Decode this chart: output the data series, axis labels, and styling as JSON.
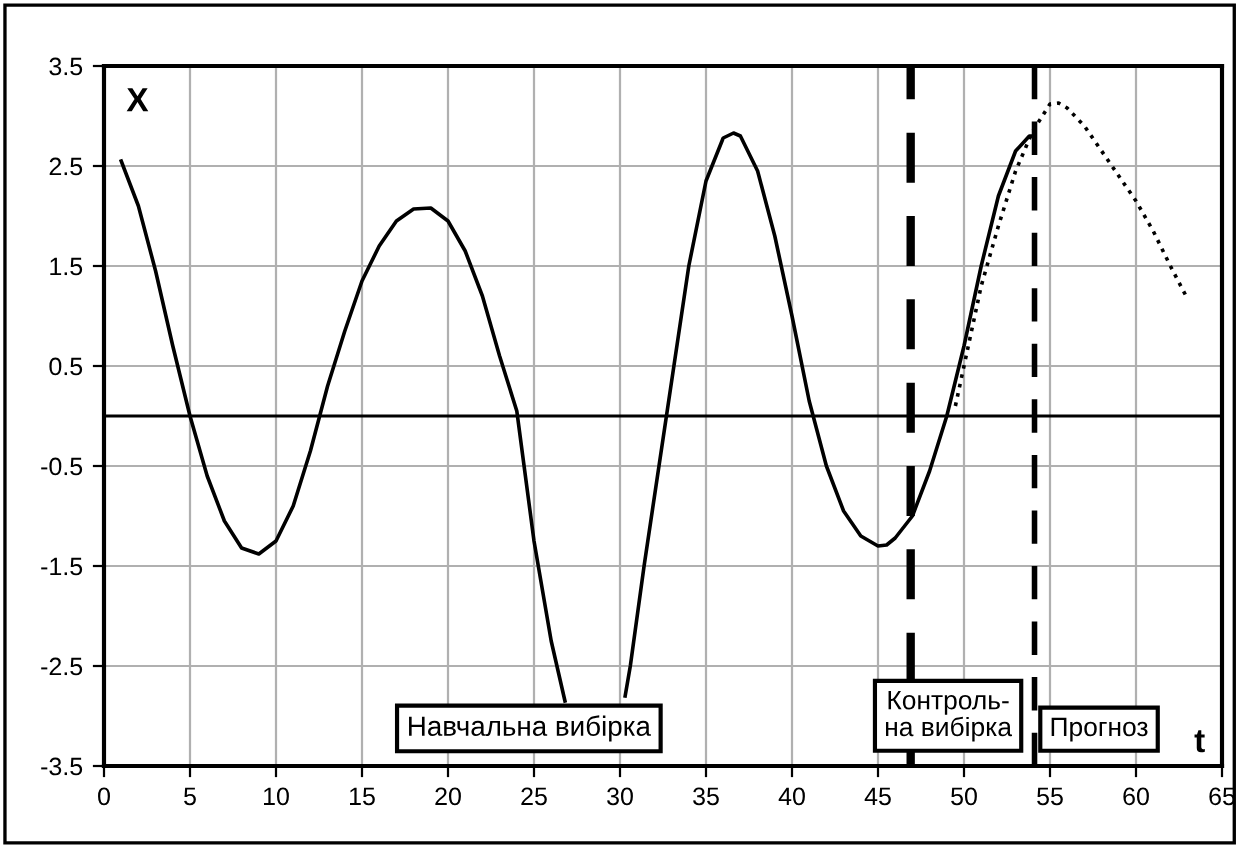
{
  "chart_data": {
    "type": "line",
    "xlabel": "t",
    "ylabel": "X",
    "xlim": [
      0,
      65
    ],
    "xticks": [
      0,
      5,
      10,
      15,
      20,
      25,
      30,
      35,
      40,
      45,
      50,
      55,
      60,
      65
    ],
    "ylim": [
      -3.5,
      3.5
    ],
    "yticks": [
      -3.5,
      -2.5,
      -1.5,
      -0.5,
      0.5,
      1.5,
      2.5,
      3.5
    ],
    "grid": true,
    "legend": false,
    "marker": "none",
    "series": [
      {
        "color": "#000000",
        "line_style": "solid",
        "x": [
          1,
          2,
          3,
          4,
          5,
          6,
          7,
          8,
          9,
          10,
          11,
          12,
          13,
          14,
          15,
          16,
          17,
          18,
          19,
          20,
          21,
          22,
          23,
          24,
          25,
          26,
          26.8,
          28.5,
          30.3,
          30.6,
          31.4,
          32.7,
          34,
          35,
          36,
          36.6,
          37,
          38,
          39,
          40,
          41,
          42,
          43,
          44,
          45,
          45.5,
          46,
          47,
          48,
          49,
          50,
          51,
          52,
          53,
          53.8,
          54
        ],
        "values": [
          2.55,
          2.1,
          1.45,
          0.7,
          0.0,
          -0.6,
          -1.05,
          -1.32,
          -1.38,
          -1.25,
          -0.9,
          -0.35,
          0.3,
          0.85,
          1.35,
          1.7,
          1.95,
          2.07,
          2.08,
          1.95,
          1.65,
          1.2,
          0.6,
          0.05,
          -1.25,
          -2.25,
          -2.85,
          null,
          -2.8,
          -2.5,
          -1.5,
          0.0,
          1.5,
          2.35,
          2.78,
          2.83,
          2.8,
          2.45,
          1.8,
          1.0,
          0.15,
          -0.5,
          -0.95,
          -1.2,
          -1.3,
          -1.29,
          -1.22,
          -1.0,
          -0.55,
          0.0,
          0.7,
          1.5,
          2.2,
          2.65,
          2.8,
          2.8
        ]
      },
      {
        "color": "#000000",
        "line_style": "dotted",
        "x": [
          49.5,
          50,
          51,
          52,
          53,
          54,
          55,
          55.5,
          56,
          57,
          58,
          59,
          60,
          61,
          62,
          63
        ],
        "values": [
          0.1,
          0.5,
          1.3,
          1.9,
          2.45,
          2.85,
          3.12,
          3.13,
          3.08,
          2.9,
          2.65,
          2.4,
          2.15,
          1.85,
          1.5,
          1.17
        ]
      }
    ],
    "ref_lines": [
      {
        "axis": "y",
        "value": 0,
        "color": "#000000",
        "line_style": "solid"
      },
      {
        "axis": "x",
        "value": 46.9,
        "color": "#000000",
        "line_style": "dashed"
      },
      {
        "axis": "x",
        "value": 54.1,
        "color": "#000000",
        "line_style": "dashed"
      }
    ],
    "annotations": [
      "Навчальна вибірка",
      "Контроль-\nна вибірка",
      "Прогноз"
    ]
  }
}
